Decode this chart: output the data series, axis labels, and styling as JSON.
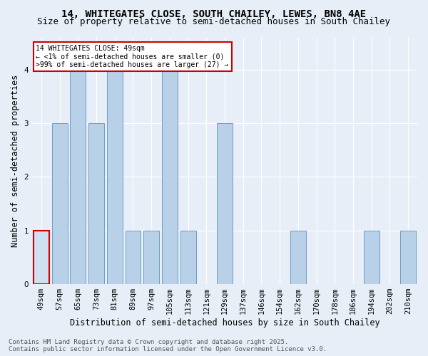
{
  "title_line1": "14, WHITEGATES CLOSE, SOUTH CHAILEY, LEWES, BN8 4AE",
  "title_line2": "Size of property relative to semi-detached houses in South Chailey",
  "xlabel": "Distribution of semi-detached houses by size in South Chailey",
  "ylabel": "Number of semi-detached properties",
  "categories": [
    "49sqm",
    "57sqm",
    "65sqm",
    "73sqm",
    "81sqm",
    "89sqm",
    "97sqm",
    "105sqm",
    "113sqm",
    "121sqm",
    "129sqm",
    "137sqm",
    "146sqm",
    "154sqm",
    "162sqm",
    "170sqm",
    "178sqm",
    "186sqm",
    "194sqm",
    "202sqm",
    "210sqm"
  ],
  "values": [
    1,
    3,
    4,
    3,
    4,
    1,
    1,
    4,
    1,
    0,
    3,
    0,
    0,
    0,
    1,
    0,
    0,
    0,
    1,
    0,
    1
  ],
  "highlight_index": 0,
  "bar_color": "#b8d0e8",
  "bar_edge_color": "#6a9fc0",
  "highlight_bar_color": "#d0e0f0",
  "highlight_edge_color": "#cc0000",
  "background_color": "#e8eef8",
  "annotation_text": "14 WHITEGATES CLOSE: 49sqm\n← <1% of semi-detached houses are smaller (0)\n>99% of semi-detached houses are larger (27) →",
  "annotation_box_color": "#ffffff",
  "annotation_edge_color": "#cc0000",
  "footer_line1": "Contains HM Land Registry data © Crown copyright and database right 2025.",
  "footer_line2": "Contains public sector information licensed under the Open Government Licence v3.0.",
  "ylim": [
    0,
    4.6
  ],
  "yticks": [
    0,
    1,
    2,
    3,
    4
  ],
  "title_fontsize": 10,
  "subtitle_fontsize": 9,
  "xlabel_fontsize": 8.5,
  "ylabel_fontsize": 8.5,
  "tick_fontsize": 7.5,
  "footer_fontsize": 6.5
}
